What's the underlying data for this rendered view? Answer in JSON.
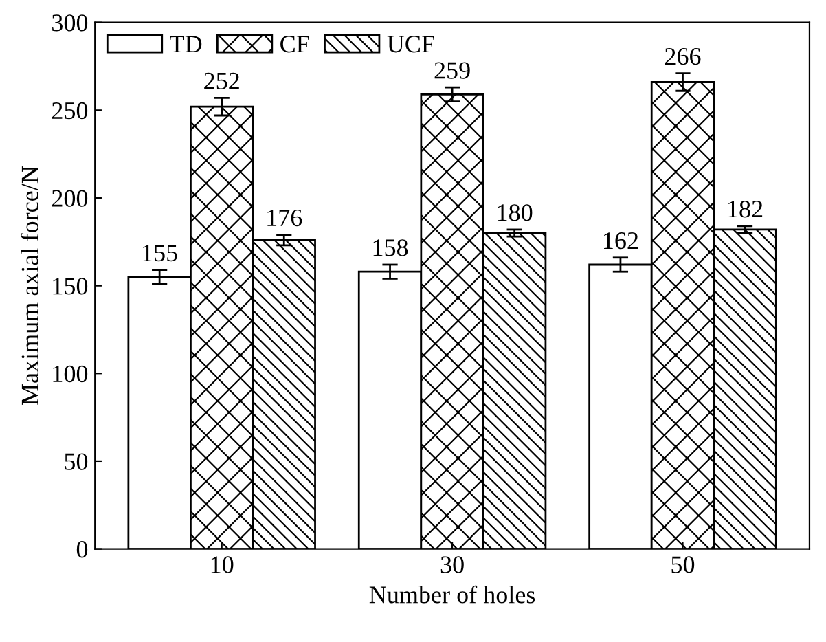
{
  "chart_data": {
    "type": "bar",
    "xlabel": "Number of holes",
    "ylabel": "Maximum axial force/N",
    "categories": [
      "10",
      "30",
      "50"
    ],
    "series": [
      {
        "name": "TD",
        "values": [
          155,
          158,
          162
        ],
        "errors": [
          4,
          4,
          4
        ]
      },
      {
        "name": "CF",
        "values": [
          252,
          259,
          266
        ],
        "errors": [
          5,
          4,
          5
        ]
      },
      {
        "name": "UCF",
        "values": [
          176,
          180,
          182
        ],
        "errors": [
          3,
          2,
          2
        ]
      }
    ],
    "ylim": [
      0,
      300
    ],
    "yticks": [
      0,
      50,
      100,
      150,
      200,
      250,
      300
    ],
    "data_labels": true,
    "legend": "top left",
    "grid": false
  }
}
